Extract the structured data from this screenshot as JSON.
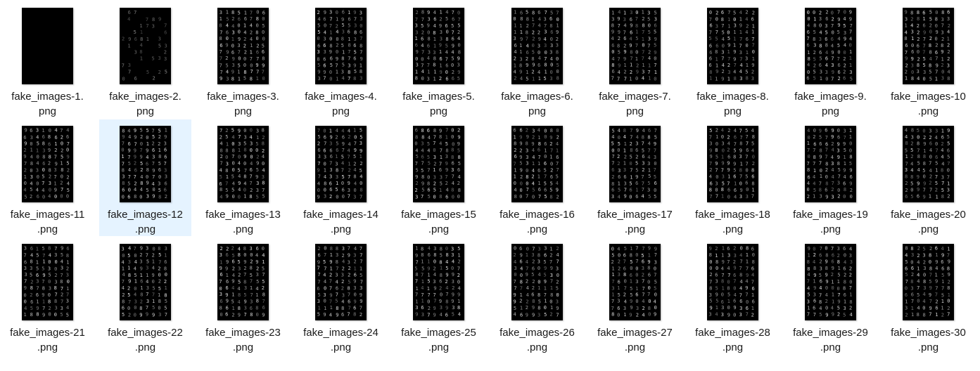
{
  "files": [
    {
      "name": "fake_images-1.png",
      "label_line1": "fake_images-1.",
      "label_line2": "png",
      "thumbnail": "blank-black",
      "selected": false
    },
    {
      "name": "fake_images-2.png",
      "label_line1": "fake_images-2.",
      "label_line2": "png",
      "thumbnail": "sparse-digit-grid",
      "selected": false
    },
    {
      "name": "fake_images-3.png",
      "label_line1": "fake_images-3.",
      "label_line2": "png",
      "thumbnail": "digit-grid",
      "selected": false
    },
    {
      "name": "fake_images-4.png",
      "label_line1": "fake_images-4.",
      "label_line2": "png",
      "thumbnail": "digit-grid",
      "selected": false
    },
    {
      "name": "fake_images-5.png",
      "label_line1": "fake_images-5.",
      "label_line2": "png",
      "thumbnail": "digit-grid",
      "selected": false
    },
    {
      "name": "fake_images-6.png",
      "label_line1": "fake_images-6.",
      "label_line2": "png",
      "thumbnail": "digit-grid",
      "selected": false
    },
    {
      "name": "fake_images-7.png",
      "label_line1": "fake_images-7.",
      "label_line2": "png",
      "thumbnail": "digit-grid",
      "selected": false
    },
    {
      "name": "fake_images-8.png",
      "label_line1": "fake_images-8.",
      "label_line2": "png",
      "thumbnail": "digit-grid",
      "selected": false
    },
    {
      "name": "fake_images-9.png",
      "label_line1": "fake_images-9.",
      "label_line2": "png",
      "thumbnail": "digit-grid",
      "selected": false
    },
    {
      "name": "fake_images-10.png",
      "label_line1": "fake_images-10",
      "label_line2": ".png",
      "thumbnail": "digit-grid",
      "selected": false
    },
    {
      "name": "fake_images-11.png",
      "label_line1": "fake_images-11",
      "label_line2": ".png",
      "thumbnail": "digit-grid",
      "selected": false
    },
    {
      "name": "fake_images-12.png",
      "label_line1": "fake_images-12",
      "label_line2": ".png",
      "thumbnail": "digit-grid",
      "selected": true
    },
    {
      "name": "fake_images-13.png",
      "label_line1": "fake_images-13",
      "label_line2": ".png",
      "thumbnail": "digit-grid",
      "selected": false
    },
    {
      "name": "fake_images-14.png",
      "label_line1": "fake_images-14",
      "label_line2": ".png",
      "thumbnail": "digit-grid",
      "selected": false
    },
    {
      "name": "fake_images-15.png",
      "label_line1": "fake_images-15",
      "label_line2": ".png",
      "thumbnail": "digit-grid",
      "selected": false
    },
    {
      "name": "fake_images-16.png",
      "label_line1": "fake_images-16",
      "label_line2": ".png",
      "thumbnail": "digit-grid",
      "selected": false
    },
    {
      "name": "fake_images-17.png",
      "label_line1": "fake_images-17",
      "label_line2": ".png",
      "thumbnail": "digit-grid",
      "selected": false
    },
    {
      "name": "fake_images-18.png",
      "label_line1": "fake_images-18",
      "label_line2": ".png",
      "thumbnail": "digit-grid",
      "selected": false
    },
    {
      "name": "fake_images-19.png",
      "label_line1": "fake_images-19",
      "label_line2": ".png",
      "thumbnail": "digit-grid",
      "selected": false
    },
    {
      "name": "fake_images-20.png",
      "label_line1": "fake_images-20",
      "label_line2": ".png",
      "thumbnail": "digit-grid",
      "selected": false
    },
    {
      "name": "fake_images-21.png",
      "label_line1": "fake_images-21",
      "label_line2": ".png",
      "thumbnail": "digit-grid",
      "selected": false
    },
    {
      "name": "fake_images-22.png",
      "label_line1": "fake_images-22",
      "label_line2": ".png",
      "thumbnail": "digit-grid",
      "selected": false
    },
    {
      "name": "fake_images-23.png",
      "label_line1": "fake_images-23",
      "label_line2": ".png",
      "thumbnail": "digit-grid",
      "selected": false
    },
    {
      "name": "fake_images-24.png",
      "label_line1": "fake_images-24",
      "label_line2": ".png",
      "thumbnail": "digit-grid",
      "selected": false
    },
    {
      "name": "fake_images-25.png",
      "label_line1": "fake_images-25",
      "label_line2": ".png",
      "thumbnail": "digit-grid",
      "selected": false
    },
    {
      "name": "fake_images-26.png",
      "label_line1": "fake_images-26",
      "label_line2": ".png",
      "thumbnail": "digit-grid",
      "selected": false
    },
    {
      "name": "fake_images-27.png",
      "label_line1": "fake_images-27",
      "label_line2": ".png",
      "thumbnail": "digit-grid",
      "selected": false
    },
    {
      "name": "fake_images-28.png",
      "label_line1": "fake_images-28",
      "label_line2": ".png",
      "thumbnail": "digit-grid",
      "selected": false
    },
    {
      "name": "fake_images-29.png",
      "label_line1": "fake_images-29",
      "label_line2": ".png",
      "thumbnail": "digit-grid",
      "selected": false
    },
    {
      "name": "fake_images-30.png",
      "label_line1": "fake_images-30",
      "label_line2": ".png",
      "thumbnail": "digit-grid",
      "selected": false
    }
  ],
  "colors": {
    "selection_background": "#e5f3ff",
    "thumbnail_background": "#000000",
    "digit_stroke": "#e0e0e0",
    "label_text": "#1a1a1a"
  }
}
